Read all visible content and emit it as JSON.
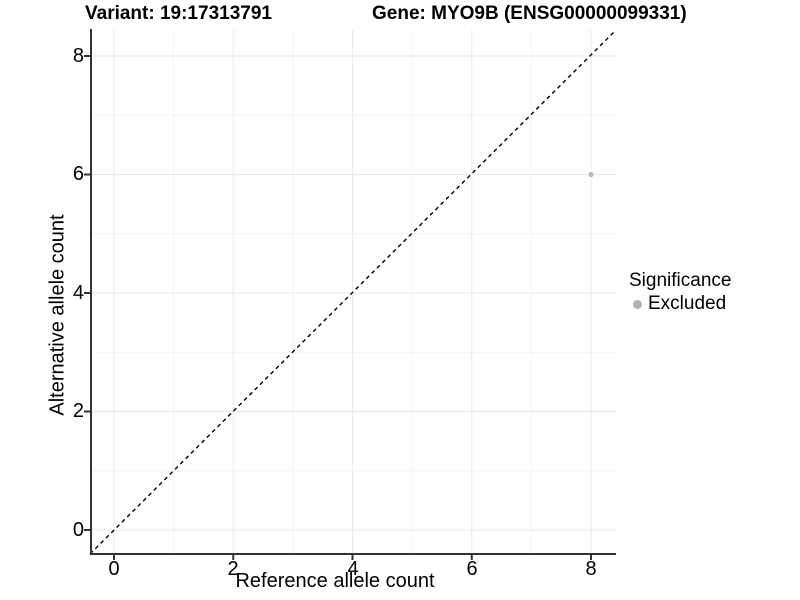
{
  "chart_data": {
    "type": "scatter",
    "title_left": "Variant: 19:17313791",
    "title_right": "Gene: MYO9B (ENSG00000099331)",
    "xlabel": "Reference allele count",
    "ylabel": "Alternative allele count",
    "x_ticks": [
      0,
      2,
      4,
      6,
      8
    ],
    "y_ticks": [
      0,
      2,
      4,
      6,
      8
    ],
    "x_tick_labels": [
      "0",
      "2",
      "4",
      "6",
      "8"
    ],
    "y_tick_labels": [
      "0",
      "2",
      "4",
      "6",
      "8"
    ],
    "xlim": [
      -0.4,
      8.4
    ],
    "ylim": [
      -0.4,
      8.4
    ],
    "grid": {
      "major": true,
      "minor": true
    },
    "points": [
      {
        "x": 8,
        "y": 6,
        "significance": "Excluded",
        "color": "#b9b9b9"
      }
    ],
    "reference_line": {
      "type": "identity (y = x)",
      "style": "dashed",
      "color": "#000000"
    },
    "legend": {
      "title": "Significance",
      "position": "right",
      "items": [
        {
          "label": "Excluded",
          "marker": "circle",
          "color": "#b3b3b3"
        }
      ]
    }
  },
  "colors": {
    "background": "#ffffff",
    "axis_line": "#333333",
    "major_grid": "#e9e9e9",
    "minor_grid": "#f4f4f4",
    "text": "#000000",
    "point": "#b9b9b9"
  }
}
